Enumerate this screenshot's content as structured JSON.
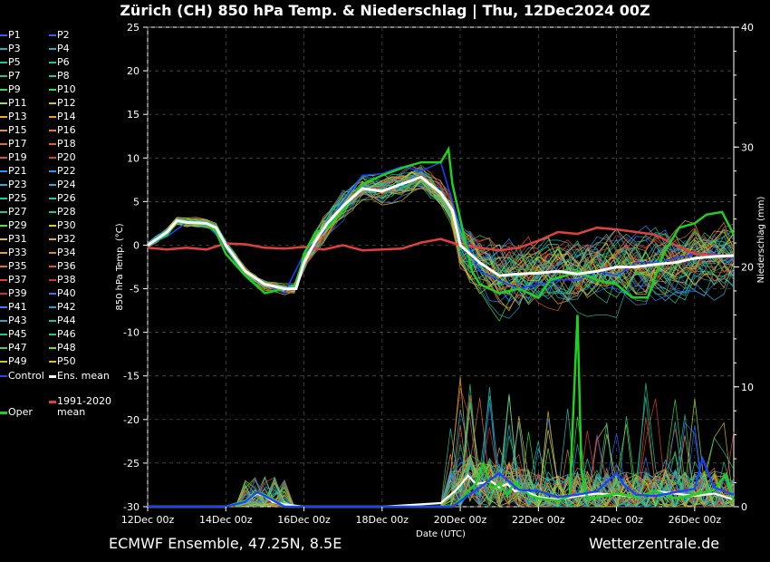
{
  "title": "Zürich  (CH)  850 hPa Temp. & Niederschlag | Thu, 12Dec2024 00Z",
  "footer": {
    "left": "ECMWF Ensemble, 47.25N, 8.5E",
    "right": "Wetterzentrale.de"
  },
  "legend": {
    "members": [
      "P1",
      "P2",
      "P3",
      "P4",
      "P5",
      "P6",
      "P7",
      "P8",
      "P9",
      "P10",
      "P11",
      "P12",
      "P13",
      "P14",
      "P15",
      "P16",
      "P17",
      "P18",
      "P19",
      "P20",
      "P21",
      "P22",
      "P23",
      "P24",
      "P25",
      "P26",
      "P27",
      "P28",
      "P29",
      "P30",
      "P31",
      "P32",
      "P33",
      "P34",
      "P35",
      "P36",
      "P37",
      "P38",
      "P39",
      "P40",
      "P41",
      "P42",
      "P43",
      "P44",
      "P45",
      "P46",
      "P47",
      "P48",
      "P49",
      "P50"
    ],
    "member_colors": [
      "#1e64ff",
      "#1e64ff",
      "#20b0c8",
      "#20b0c8",
      "#20c0a0",
      "#20c0a0",
      "#20c890",
      "#20c890",
      "#38e040",
      "#38e040",
      "#a0e040",
      "#d0c020",
      "#e8b020",
      "#e8a030",
      "#e89040",
      "#e07830",
      "#e07020",
      "#e06020",
      "#e05030",
      "#e04030",
      "#3090ff",
      "#3090ff",
      "#20b0d0",
      "#20b0d0",
      "#20c8b0",
      "#20c8b0",
      "#20c890",
      "#20c890",
      "#58e040",
      "#d8d020",
      "#e0c020",
      "#e0b020",
      "#e8a030",
      "#e08030",
      "#e07030",
      "#e05030",
      "#e04030",
      "#d83030",
      "#d03030",
      "#3070ff",
      "#3080ff",
      "#20a0d0",
      "#20b0c0",
      "#20c0a0",
      "#20c890",
      "#20c890",
      "#40d060",
      "#70d840",
      "#c8c820",
      "#e0c020"
    ],
    "control": "Control",
    "ens_mean": "Ens. mean",
    "oper": "Oper",
    "climate_mean_line1": "1991-2020",
    "climate_mean_line2": "mean"
  },
  "chart_data": {
    "type": "line",
    "title": "Zürich  (CH)  850 hPa Temp. & Niederschlag | Thu, 12Dec2024 00Z",
    "xlabel": "Date (UTC)",
    "ylabel": "850 hPa Temp. (°C)",
    "y2label": "Niederschlag (mm)",
    "xlim": [
      0,
      15
    ],
    "ylim": [
      -30,
      25
    ],
    "y2lim": [
      0,
      40
    ],
    "x_ticks": [
      "12Dec 00z",
      "14Dec 00z",
      "16Dec 00z",
      "18Dec 00z",
      "20Dec 00z",
      "22Dec 00z",
      "24Dec 00z",
      "26Dec 00z"
    ],
    "x_tick_days": [
      0,
      2,
      4,
      6,
      8,
      10,
      12,
      14
    ],
    "y_ticks": [
      25,
      20,
      15,
      10,
      5,
      0,
      -5,
      -10,
      -15,
      -20,
      -25,
      -30
    ],
    "y2_ticks": [
      40,
      30,
      20,
      10,
      0
    ],
    "grid": true,
    "series": [
      {
        "name": "Ens. mean",
        "color": "#ffffff",
        "x": [
          0,
          0.5,
          0.75,
          1,
          1.5,
          1.75,
          2,
          2.5,
          3,
          3.5,
          3.8,
          4,
          4.3,
          4.6,
          5,
          5.5,
          6,
          6.5,
          7,
          7.5,
          7.8,
          8,
          8.5,
          9,
          9.5,
          10,
          10.5,
          11,
          11.5,
          12,
          12.5,
          13,
          13.5,
          14,
          14.5,
          15
        ],
        "y": [
          0,
          1.5,
          2.8,
          2.6,
          2.5,
          2,
          0,
          -3,
          -4.5,
          -5,
          -5,
          -2,
          0.5,
          2.5,
          4.5,
          6.5,
          6.2,
          7,
          7.8,
          6,
          4,
          0,
          -2,
          -3.5,
          -3.3,
          -3.2,
          -3,
          -3.3,
          -3,
          -2.5,
          -2.5,
          -2.2,
          -2,
          -1.5,
          -1.3,
          -1.2
        ]
      },
      {
        "name": "1991-2020 mean",
        "color": "#e04040",
        "x": [
          0,
          0.5,
          1,
          1.5,
          2,
          2.5,
          3,
          3.5,
          4,
          4.5,
          5,
          5.5,
          6,
          6.5,
          7,
          7.5,
          8,
          8.5,
          9,
          9.5,
          10,
          10.5,
          11,
          11.5,
          12,
          12.5,
          13,
          13.5,
          14,
          14.5,
          15
        ],
        "y": [
          -0.3,
          -0.5,
          -0.3,
          -0.5,
          0.2,
          0.1,
          -0.3,
          -0.4,
          -0.2,
          -0.5,
          0,
          -0.6,
          -0.5,
          -0.4,
          0.3,
          0.7,
          0,
          -0.3,
          -0.6,
          -0.3,
          0.5,
          1.5,
          1.3,
          2,
          1.8,
          1.5,
          1.2,
          0,
          -1,
          -1.2,
          -1.3
        ]
      },
      {
        "name": "Oper",
        "color": "#20d020",
        "x": [
          0,
          0.5,
          0.75,
          1,
          1.5,
          1.75,
          2,
          2.5,
          3,
          3.5,
          3.8,
          4,
          4.3,
          4.6,
          5,
          5.5,
          6,
          6.3,
          6.6,
          7,
          7.5,
          7.7,
          7.8,
          8,
          8.3,
          8.5,
          9,
          9.5,
          10,
          10.3,
          10.7,
          11,
          11.5,
          12,
          12.4,
          12.8,
          13.2,
          13.6,
          14,
          14.3,
          14.7,
          15
        ],
        "y": [
          0,
          1.2,
          2.7,
          2.5,
          2.4,
          1.5,
          -1,
          -3.5,
          -5.5,
          -5,
          -5,
          -1,
          1.5,
          2,
          4,
          7,
          8,
          8.5,
          9,
          9.5,
          9.5,
          11,
          7,
          3,
          -3,
          -4.5,
          -5.5,
          -5,
          -6,
          -4,
          -3.5,
          -3,
          -4,
          -4.5,
          -6,
          -6,
          -1,
          2,
          2.5,
          3.5,
          3.8,
          1.2
        ]
      },
      {
        "name": "Control",
        "color": "#1e40ff",
        "x": [
          0,
          0.5,
          1,
          1.5,
          2,
          2.5,
          3,
          3.5,
          4,
          4.5,
          5,
          5.5,
          6,
          6.5,
          7,
          7.5,
          8,
          8.5,
          9,
          9.5,
          10,
          10.5,
          11,
          11.5,
          12,
          12.5,
          13,
          13.5,
          14,
          14.5,
          15
        ],
        "y": [
          0,
          1,
          2.6,
          2.4,
          0,
          -3,
          -4.5,
          -5.5,
          -1,
          1.5,
          5,
          8,
          8.2,
          9,
          8.5,
          9.5,
          2,
          -3,
          -4,
          -5,
          -4.5,
          -4,
          -4,
          -3,
          -3.5,
          -2,
          -2,
          -1.5,
          -1,
          -1,
          -1.5
        ]
      }
    ],
    "precip_series": [
      {
        "name": "Ens. mean",
        "color": "#ffffff",
        "x": [
          0,
          2,
          2.5,
          2.8,
          3,
          3.2,
          3.5,
          4,
          5,
          6,
          7,
          7.5,
          7.9,
          8.2,
          8.4,
          8.6,
          8.8,
          9,
          9.2,
          9.4,
          9.6,
          9.8,
          10,
          10.5,
          11,
          11.5,
          12,
          12.5,
          13,
          13.5,
          14,
          14.5,
          15
        ],
        "y": [
          0,
          0,
          0.4,
          1.1,
          0.9,
          0.4,
          0.2,
          0,
          0,
          0,
          0.2,
          0.3,
          1.4,
          2.6,
          1.9,
          2.0,
          2.1,
          1.6,
          1.9,
          1.3,
          1.4,
          1.1,
          0.8,
          0.6,
          0.9,
          1.1,
          1.0,
          0.8,
          1.3,
          1.1,
          0.9,
          1.1,
          0.6
        ]
      },
      {
        "name": "Oper",
        "color": "#20d020",
        "x": [
          0,
          2,
          2.5,
          2.8,
          3,
          3.5,
          7.8,
          8,
          8.2,
          8.4,
          8.6,
          8.8,
          9,
          9.2,
          9.4,
          9.6,
          9.8,
          10,
          10.5,
          10.8,
          11,
          11.1,
          11.2,
          11.3,
          11.5,
          12,
          12.5,
          13,
          13.5,
          14,
          14.5,
          14.8,
          15
        ],
        "y": [
          0,
          0,
          0.5,
          1.2,
          1.0,
          0,
          0,
          0.6,
          1.3,
          1.9,
          3.6,
          1.5,
          1.9,
          1.0,
          2.1,
          1.4,
          0.9,
          0.7,
          0.5,
          0.9,
          16,
          3,
          1.2,
          0.6,
          0.8,
          1.1,
          0.8,
          1.3,
          0.7,
          1.0,
          1.4,
          2.7,
          0.5
        ]
      },
      {
        "name": "Control",
        "color": "#1e40ff",
        "x": [
          0,
          2,
          2.5,
          2.8,
          3,
          3.5,
          7.8,
          8.5,
          9,
          9.5,
          10,
          10.5,
          11,
          11.5,
          12,
          12.2,
          12.5,
          13,
          13.5,
          14,
          14.2,
          14.5,
          15
        ],
        "y": [
          0,
          0,
          0.4,
          1.2,
          0.9,
          0,
          0,
          1.6,
          2.8,
          1.4,
          1.3,
          0.8,
          1.0,
          1.3,
          2.8,
          1.8,
          1.0,
          0.9,
          1.2,
          1.5,
          4,
          1.6,
          1.0
        ]
      }
    ]
  }
}
